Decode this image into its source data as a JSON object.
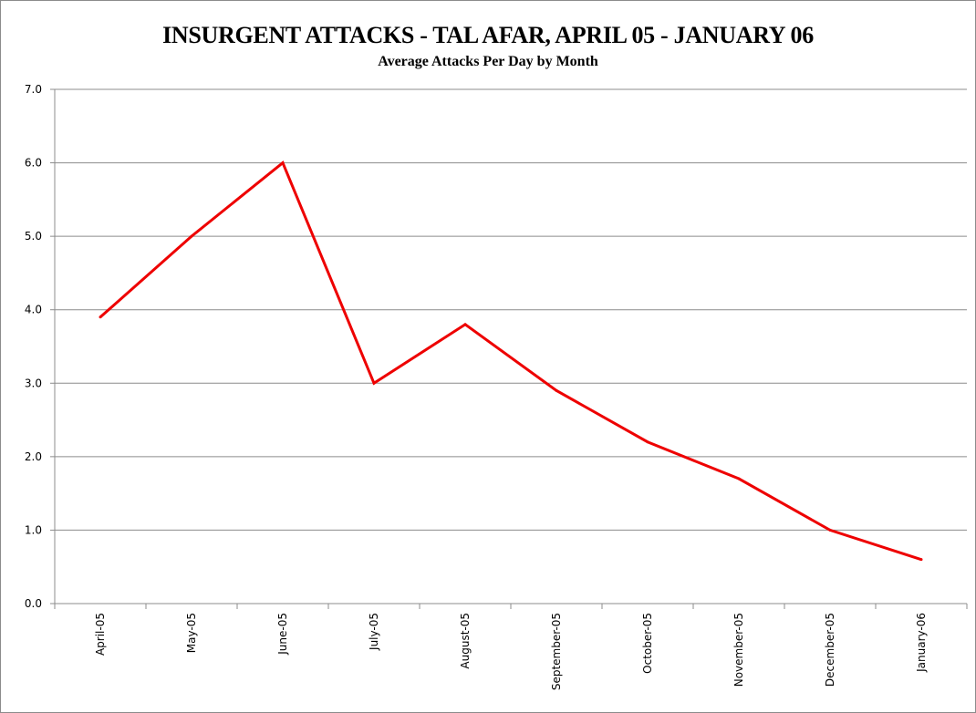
{
  "chart_data": {
    "type": "line",
    "title": "INSURGENT ATTACKS - TAL AFAR, APRIL 05 - JANUARY 06",
    "subtitle": "Average Attacks Per Day by Month",
    "xlabel": "",
    "ylabel": "",
    "categories": [
      "April-05",
      "May-05",
      "June-05",
      "July-05",
      "August-05",
      "September-05",
      "October-05",
      "November-05",
      "December-05",
      "January-06"
    ],
    "series": [
      {
        "values": [
          3.9,
          5.0,
          6.0,
          3.0,
          3.8,
          2.9,
          2.2,
          1.7,
          1.0,
          0.6
        ],
        "color": "#ee0000"
      }
    ],
    "ylim": [
      0,
      7
    ],
    "yticks": [
      "0.0",
      "1.0",
      "2.0",
      "3.0",
      "4.0",
      "5.0",
      "6.0",
      "7.0"
    ],
    "grid": true,
    "legend": "none"
  }
}
